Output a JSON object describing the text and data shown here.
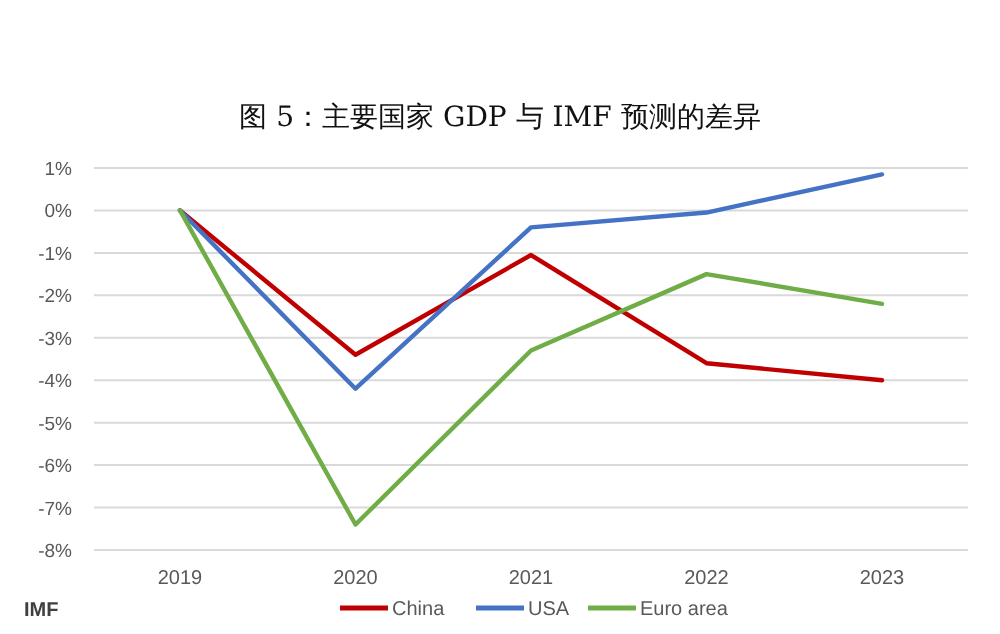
{
  "chart_data": {
    "type": "line",
    "title": "图 5：主要国家 GDP 与 IMF 预测的差异",
    "categories": [
      "2019",
      "2020",
      "2021",
      "2022",
      "2023"
    ],
    "series": [
      {
        "name": "China",
        "color": "#c00000",
        "values": [
          0,
          -3.4,
          -1.05,
          -3.6,
          -4.0
        ]
      },
      {
        "name": "USA",
        "color": "#4472c4",
        "values": [
          0,
          -4.2,
          -0.4,
          -0.05,
          0.85
        ]
      },
      {
        "name": "Euro area",
        "color": "#70ad47",
        "values": [
          0,
          -7.4,
          -3.3,
          -1.5,
          -2.2
        ]
      }
    ],
    "ylim": [
      -8,
      1
    ],
    "yticks": [
      {
        "value": 1,
        "label": "1%"
      },
      {
        "value": 0,
        "label": "0%"
      },
      {
        "value": -1,
        "label": "-1%"
      },
      {
        "value": -2,
        "label": "-2%"
      },
      {
        "value": -3,
        "label": "-3%"
      },
      {
        "value": -4,
        "label": "-4%"
      },
      {
        "value": -5,
        "label": "-5%"
      },
      {
        "value": -6,
        "label": "-6%"
      },
      {
        "value": -7,
        "label": "-7%"
      },
      {
        "value": -8,
        "label": "-8%"
      }
    ],
    "grid": "y",
    "legend": "bottom",
    "marker": "none",
    "line_style": "solid",
    "annotations": [
      "IMF"
    ]
  }
}
